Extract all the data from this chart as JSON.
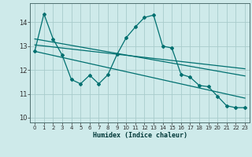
{
  "xlabel": "Humidex (Indice chaleur)",
  "bg_color": "#ceeaea",
  "grid_color": "#a8cccc",
  "line_color": "#007070",
  "ylim": [
    9.8,
    14.8
  ],
  "xlim": [
    -0.5,
    23.5
  ],
  "yticks": [
    10,
    11,
    12,
    13,
    14
  ],
  "xticks": [
    0,
    1,
    2,
    3,
    4,
    5,
    6,
    7,
    8,
    9,
    10,
    11,
    12,
    13,
    14,
    15,
    16,
    17,
    18,
    19,
    20,
    21,
    22,
    23
  ],
  "curve1_x": [
    0,
    1,
    2,
    3,
    4,
    5,
    6,
    7,
    8,
    9,
    10,
    11,
    12,
    13,
    14,
    15,
    16,
    17,
    18,
    19,
    20,
    21,
    22,
    23
  ],
  "curve1_y": [
    12.8,
    14.35,
    13.3,
    12.62,
    11.6,
    11.42,
    11.78,
    11.42,
    11.8,
    12.65,
    13.35,
    13.8,
    14.2,
    14.3,
    13.0,
    12.92,
    11.82,
    11.7,
    11.35,
    11.3,
    10.9,
    10.5,
    10.42,
    10.42
  ],
  "line2_x": [
    0,
    23
  ],
  "line2_y": [
    13.3,
    11.75
  ],
  "line3_x": [
    0,
    23
  ],
  "line3_y": [
    13.05,
    12.05
  ],
  "line4_x": [
    0,
    23
  ],
  "line4_y": [
    12.78,
    10.82
  ]
}
